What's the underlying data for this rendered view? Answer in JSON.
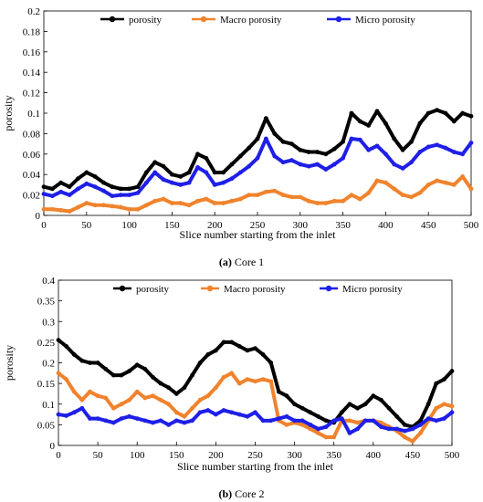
{
  "colors": {
    "porosity": "#000000",
    "macro": "#f0832d",
    "micro": "#1f1fe8"
  },
  "chart_data": [
    {
      "type": "line",
      "caption_letter": "(a)",
      "caption_text": " Core 1",
      "xlabel": "Slice number starting from the inlet",
      "ylabel": "porosity",
      "xlim": [
        0,
        500
      ],
      "ylim": [
        0,
        0.2
      ],
      "xticks": [
        "0",
        "50",
        "100",
        "150",
        "200",
        "250",
        "300",
        "350",
        "400",
        "450",
        "500"
      ],
      "yticks": [
        "0",
        "0.02",
        "0.04",
        "0.06",
        "0.08",
        "0.1",
        "0.12",
        "0.14",
        "0.16",
        "0.18",
        "0.2"
      ],
      "legend_position": "top",
      "grid": false,
      "x": [
        0,
        10,
        20,
        30,
        40,
        50,
        60,
        70,
        80,
        90,
        100,
        110,
        120,
        130,
        140,
        150,
        160,
        170,
        180,
        190,
        200,
        210,
        220,
        230,
        240,
        250,
        260,
        270,
        280,
        290,
        300,
        310,
        320,
        330,
        340,
        350,
        360,
        370,
        380,
        390,
        400,
        410,
        420,
        430,
        440,
        450,
        460,
        470,
        480,
        490,
        500
      ],
      "series": [
        {
          "name": "porosity",
          "color_key": "porosity",
          "values": [
            0.028,
            0.026,
            0.032,
            0.028,
            0.036,
            0.042,
            0.038,
            0.032,
            0.028,
            0.026,
            0.026,
            0.028,
            0.042,
            0.052,
            0.048,
            0.04,
            0.038,
            0.042,
            0.06,
            0.056,
            0.042,
            0.042,
            0.05,
            0.058,
            0.066,
            0.075,
            0.095,
            0.08,
            0.072,
            0.07,
            0.064,
            0.062,
            0.062,
            0.06,
            0.065,
            0.072,
            0.1,
            0.092,
            0.088,
            0.102,
            0.09,
            0.075,
            0.064,
            0.072,
            0.09,
            0.1,
            0.103,
            0.1,
            0.092,
            0.1,
            0.097
          ]
        },
        {
          "name": "Macro porosity",
          "color_key": "macro",
          "values": [
            0.006,
            0.006,
            0.005,
            0.004,
            0.008,
            0.012,
            0.01,
            0.01,
            0.009,
            0.008,
            0.006,
            0.006,
            0.01,
            0.014,
            0.016,
            0.012,
            0.012,
            0.01,
            0.014,
            0.016,
            0.012,
            0.012,
            0.014,
            0.016,
            0.02,
            0.02,
            0.023,
            0.024,
            0.02,
            0.018,
            0.018,
            0.014,
            0.012,
            0.012,
            0.014,
            0.014,
            0.02,
            0.016,
            0.022,
            0.034,
            0.032,
            0.026,
            0.02,
            0.018,
            0.022,
            0.03,
            0.034,
            0.032,
            0.03,
            0.038,
            0.026
          ]
        },
        {
          "name": "Micro porosity",
          "color_key": "micro",
          "values": [
            0.021,
            0.019,
            0.023,
            0.02,
            0.026,
            0.031,
            0.028,
            0.024,
            0.019,
            0.02,
            0.02,
            0.022,
            0.032,
            0.042,
            0.035,
            0.032,
            0.03,
            0.032,
            0.047,
            0.042,
            0.03,
            0.032,
            0.036,
            0.042,
            0.048,
            0.056,
            0.075,
            0.058,
            0.052,
            0.054,
            0.05,
            0.048,
            0.05,
            0.045,
            0.05,
            0.056,
            0.075,
            0.074,
            0.064,
            0.068,
            0.06,
            0.05,
            0.046,
            0.052,
            0.062,
            0.067,
            0.069,
            0.066,
            0.062,
            0.06,
            0.071
          ]
        }
      ]
    },
    {
      "type": "line",
      "caption_letter": "(b)",
      "caption_text": " Core 2",
      "xlabel": "Slice number starting from the inlet",
      "ylabel": "porosity",
      "xlim": [
        0,
        500
      ],
      "ylim": [
        0,
        0.4
      ],
      "xticks": [
        "0",
        "50",
        "100",
        "150",
        "200",
        "250",
        "300",
        "350",
        "400",
        "450",
        "500"
      ],
      "yticks": [
        "0",
        "0.05",
        "0.1",
        "0.15",
        "0.2",
        "0.25",
        "0.3",
        "0.35",
        "0.4"
      ],
      "legend_position": "top",
      "grid": false,
      "x": [
        0,
        10,
        20,
        30,
        40,
        50,
        60,
        70,
        80,
        90,
        100,
        110,
        120,
        130,
        140,
        150,
        160,
        170,
        180,
        190,
        200,
        210,
        220,
        230,
        240,
        250,
        260,
        270,
        280,
        290,
        300,
        310,
        320,
        330,
        340,
        350,
        360,
        370,
        380,
        390,
        400,
        410,
        420,
        430,
        440,
        450,
        460,
        470,
        480,
        490,
        500
      ],
      "series": [
        {
          "name": "porosity",
          "color_key": "porosity",
          "values": [
            0.255,
            0.24,
            0.22,
            0.205,
            0.2,
            0.2,
            0.185,
            0.17,
            0.17,
            0.18,
            0.195,
            0.185,
            0.165,
            0.15,
            0.14,
            0.125,
            0.14,
            0.17,
            0.2,
            0.22,
            0.23,
            0.25,
            0.25,
            0.24,
            0.23,
            0.235,
            0.22,
            0.2,
            0.13,
            0.12,
            0.1,
            0.09,
            0.08,
            0.07,
            0.06,
            0.055,
            0.08,
            0.1,
            0.09,
            0.1,
            0.12,
            0.11,
            0.09,
            0.07,
            0.05,
            0.045,
            0.06,
            0.1,
            0.15,
            0.16,
            0.18
          ]
        },
        {
          "name": "Macro porosity",
          "color_key": "macro",
          "values": [
            0.175,
            0.16,
            0.13,
            0.11,
            0.13,
            0.12,
            0.115,
            0.09,
            0.1,
            0.11,
            0.13,
            0.115,
            0.12,
            0.11,
            0.1,
            0.08,
            0.07,
            0.09,
            0.11,
            0.12,
            0.14,
            0.165,
            0.175,
            0.15,
            0.16,
            0.155,
            0.16,
            0.155,
            0.06,
            0.05,
            0.055,
            0.05,
            0.04,
            0.03,
            0.02,
            0.02,
            0.06,
            0.06,
            0.055,
            0.06,
            0.06,
            0.055,
            0.045,
            0.035,
            0.02,
            0.01,
            0.03,
            0.06,
            0.09,
            0.1,
            0.095
          ]
        },
        {
          "name": "Micro porosity",
          "color_key": "micro",
          "values": [
            0.075,
            0.072,
            0.08,
            0.09,
            0.065,
            0.065,
            0.06,
            0.055,
            0.065,
            0.07,
            0.065,
            0.06,
            0.055,
            0.06,
            0.05,
            0.06,
            0.055,
            0.06,
            0.08,
            0.085,
            0.075,
            0.085,
            0.08,
            0.075,
            0.07,
            0.08,
            0.06,
            0.06,
            0.065,
            0.07,
            0.06,
            0.06,
            0.05,
            0.04,
            0.045,
            0.06,
            0.065,
            0.03,
            0.04,
            0.06,
            0.06,
            0.045,
            0.04,
            0.04,
            0.035,
            0.04,
            0.05,
            0.065,
            0.06,
            0.065,
            0.08
          ]
        }
      ]
    }
  ]
}
